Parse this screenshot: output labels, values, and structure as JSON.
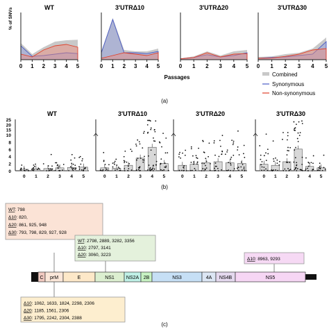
{
  "chart_data": [
    {
      "type": "area",
      "panel": "(a)",
      "ylabel_partial": "% of SNVs",
      "xlabel": "Passages",
      "x": [
        0,
        1,
        2,
        3,
        4,
        5
      ],
      "legend": [
        "Combined",
        "Synonymous",
        "Non-synonymous"
      ],
      "colors": {
        "combined": "#c8c8c8",
        "synonymous": "#4a5bc4",
        "non_synonymous": "#e0402a"
      },
      "subplots": [
        {
          "title": "WT",
          "combined": [
            60,
            20,
            45,
            65,
            70,
            72
          ],
          "synonymous": [
            50,
            12,
            15,
            20,
            25,
            22
          ],
          "non_synonymous": [
            20,
            10,
            35,
            50,
            55,
            45
          ]
        },
        {
          "title": "3'UTRΔ10",
          "combined": [
            30,
            150,
            35,
            30,
            30,
            40
          ],
          "synonymous": [
            25,
            145,
            25,
            25,
            22,
            30
          ],
          "non_synonymous": [
            5,
            15,
            25,
            20,
            15,
            25
          ]
        },
        {
          "title": "3'UTRΔ20",
          "combined": [
            5,
            12,
            30,
            15,
            30,
            35
          ],
          "synonymous": [
            3,
            8,
            18,
            10,
            15,
            25
          ],
          "non_synonymous": [
            3,
            8,
            25,
            10,
            20,
            22
          ]
        },
        {
          "title": "3'UTRΔ30",
          "combined": [
            10,
            12,
            20,
            25,
            40,
            80
          ],
          "synonymous": [
            5,
            8,
            10,
            15,
            20,
            65
          ],
          "non_synonymous": [
            5,
            6,
            12,
            20,
            35,
            40
          ]
        }
      ]
    },
    {
      "type": "bar",
      "panel": "(b)",
      "categories": [
        "0",
        "1",
        "2",
        "3",
        "4",
        "5"
      ],
      "y_ticks": [
        "25",
        "20",
        "15",
        "10",
        "8",
        "6",
        "4",
        "2",
        "0"
      ],
      "subplots": [
        {
          "title": "WT",
          "values": [
            0.4,
            0.5,
            0.6,
            0.8,
            0.9,
            1.0
          ]
        },
        {
          "title": "3'UTRΔ10",
          "values": [
            0.8,
            0.7,
            1.5,
            3.5,
            6.5,
            2.0
          ]
        },
        {
          "title": "3'UTRΔ20",
          "values": [
            1.5,
            1.8,
            2.2,
            2.5,
            2.2,
            2.0
          ]
        },
        {
          "title": "3'UTRΔ30",
          "values": [
            1.8,
            1.5,
            2.5,
            6.0,
            1.2,
            0.8
          ]
        }
      ]
    }
  ],
  "figure": {
    "a_label": "(a)",
    "b_label": "(b)",
    "c_label": "(c)",
    "a_ytick_top_partial": "% of SNVs",
    "a_y_partial_values": [
      "150",
      "100",
      "50",
      "0"
    ]
  },
  "genome": {
    "segments": [
      {
        "name": "C",
        "color": "#f0c9c0"
      },
      {
        "name": "prM",
        "color": "#fbe7d9"
      },
      {
        "name": "E",
        "color": "#fde8c8"
      },
      {
        "name": "NS1",
        "color": "#dcefd0"
      },
      {
        "name": "NS2A",
        "color": "#bff0e6"
      },
      {
        "name": "2B",
        "color": "#c7f2c2"
      },
      {
        "name": "NS3",
        "color": "#c6dff5"
      },
      {
        "name": "4A",
        "color": "#dce6f4"
      },
      {
        "name": "NS4B",
        "color": "#e4d8ee"
      },
      {
        "name": "NS5",
        "color": "#f6d6f4"
      }
    ],
    "box_prm": {
      "lines": [
        {
          "label": "WT",
          "values": ": 798"
        },
        {
          "label": "Δ10",
          "values": ": 820,"
        },
        {
          "label": "Δ20",
          "values": ": 861, 925, 948"
        },
        {
          "label": "Δ30",
          "values": ": 793, 798, 829, 927, 928"
        }
      ]
    },
    "box_ns1": {
      "lines": [
        {
          "label": "WT",
          "values": ": 2798, 2889, 3282, 3356"
        },
        {
          "label": "Δ10",
          "values": ": 2797, 3141"
        },
        {
          "label": "Δ20",
          "values": ": 3060, 3223"
        }
      ]
    },
    "box_ns5": {
      "lines": [
        {
          "label": "Δ10",
          "values": ": 8963, 9293"
        }
      ]
    },
    "box_e": {
      "lines": [
        {
          "label": "Δ10",
          "values": ": 1062, 1633, 1824, 2298, 2306"
        },
        {
          "label": "Δ20",
          "values": ": 1185, 1561, 2306"
        },
        {
          "label": "Δ30",
          "values": ": 1795, 2242, 2304, 2388"
        }
      ]
    }
  }
}
